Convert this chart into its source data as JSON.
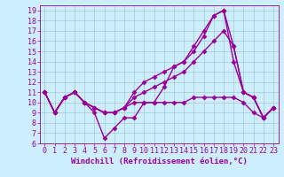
{
  "background_color": "#cceeff",
  "line_color": "#990099",
  "marker": "D",
  "marker_size": 2.5,
  "linewidth": 1.0,
  "xlabel": "Windchill (Refroidissement éolien,°C)",
  "xlabel_fontsize": 6.5,
  "tick_fontsize": 6,
  "xlim": [
    -0.5,
    23.5
  ],
  "ylim": [
    6,
    19.5
  ],
  "yticks": [
    6,
    7,
    8,
    9,
    10,
    11,
    12,
    13,
    14,
    15,
    16,
    17,
    18,
    19
  ],
  "xticks": [
    0,
    1,
    2,
    3,
    4,
    5,
    6,
    7,
    8,
    9,
    10,
    11,
    12,
    13,
    14,
    15,
    16,
    17,
    18,
    19,
    20,
    21,
    22,
    23
  ],
  "series": [
    [
      11,
      9,
      10.5,
      11,
      10,
      9,
      6.5,
      7.5,
      8.5,
      8.5,
      10,
      10,
      11.5,
      13.5,
      14,
      15,
      16.5,
      18.5,
      19,
      15.5,
      11,
      10.5,
      8.5,
      9.5
    ],
    [
      11,
      9,
      10.5,
      11,
      10,
      9.5,
      9,
      9,
      9.5,
      10,
      10,
      10,
      10,
      10,
      10,
      10.5,
      10.5,
      10.5,
      10.5,
      10.5,
      10,
      9,
      8.5,
      9.5
    ],
    [
      11,
      9,
      10.5,
      11,
      10,
      9.5,
      9,
      9,
      9.5,
      10.5,
      11,
      11.5,
      12,
      12.5,
      13,
      14,
      15,
      16,
      17,
      15.5,
      11,
      10.5,
      8.5,
      9.5
    ],
    [
      11,
      9,
      10.5,
      11,
      10,
      9.5,
      9,
      9,
      9.5,
      11,
      12,
      12.5,
      13,
      13.5,
      14,
      15.5,
      17,
      18.5,
      19,
      14,
      11,
      10.5,
      8.5,
      9.5
    ]
  ]
}
